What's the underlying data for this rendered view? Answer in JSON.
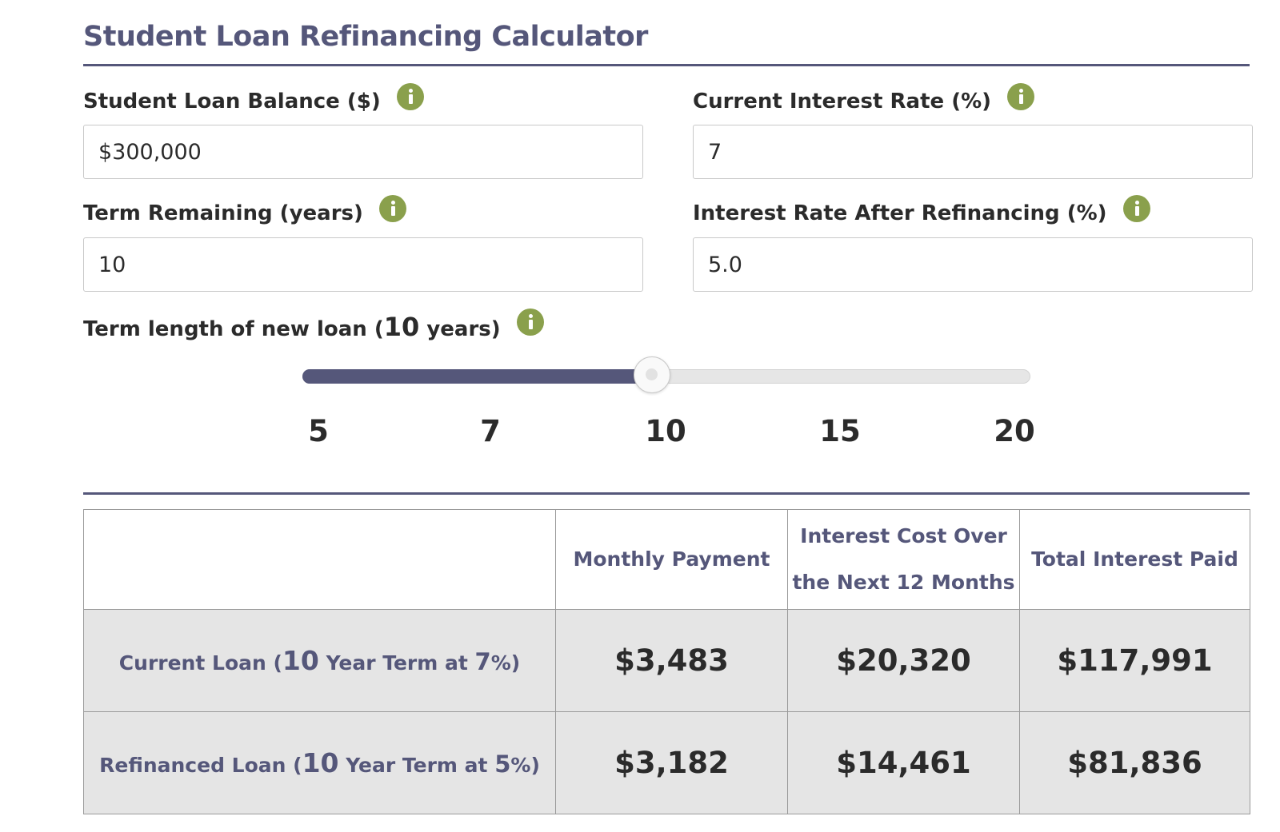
{
  "title": "Student Loan Refinancing Calculator",
  "fields": {
    "balance": {
      "label": "Student Loan Balance ($)",
      "value": "$300,000"
    },
    "current_rate": {
      "label": "Current Interest Rate (%)",
      "value": "7"
    },
    "term_remaining": {
      "label": "Term Remaining (years)",
      "value": "10"
    },
    "refi_rate": {
      "label": "Interest Rate After Refinancing (%)",
      "value": "5.0"
    }
  },
  "slider": {
    "label_prefix": "Term length of new loan (",
    "label_value": "10",
    "label_suffix": " years)",
    "ticks": [
      "5",
      "7",
      "10",
      "15",
      "20"
    ],
    "selected": "10",
    "fill_fraction": 0.48
  },
  "table": {
    "headers": [
      "Monthly Payment",
      "Interest Cost Over the Next 12 Months",
      "Total Interest Paid"
    ],
    "rows": [
      {
        "label": {
          "prefix": "Current Loan (",
          "term": "10",
          "middle": " Year Term at ",
          "rate": "7",
          "suffix": "%)"
        },
        "monthly": "$3,483",
        "interest_12mo": "$20,320",
        "total_interest": "$117,991"
      },
      {
        "label": {
          "prefix": "Refinanced Loan (",
          "term": "10",
          "middle": " Year Term at ",
          "rate": "5",
          "suffix": "%)"
        },
        "monthly": "$3,182",
        "interest_12mo": "$14,461",
        "total_interest": "$81,836"
      }
    ]
  },
  "colors": {
    "accent": "#55577a",
    "info": "#8aa04c",
    "row_bg": "#e5e5e5"
  }
}
